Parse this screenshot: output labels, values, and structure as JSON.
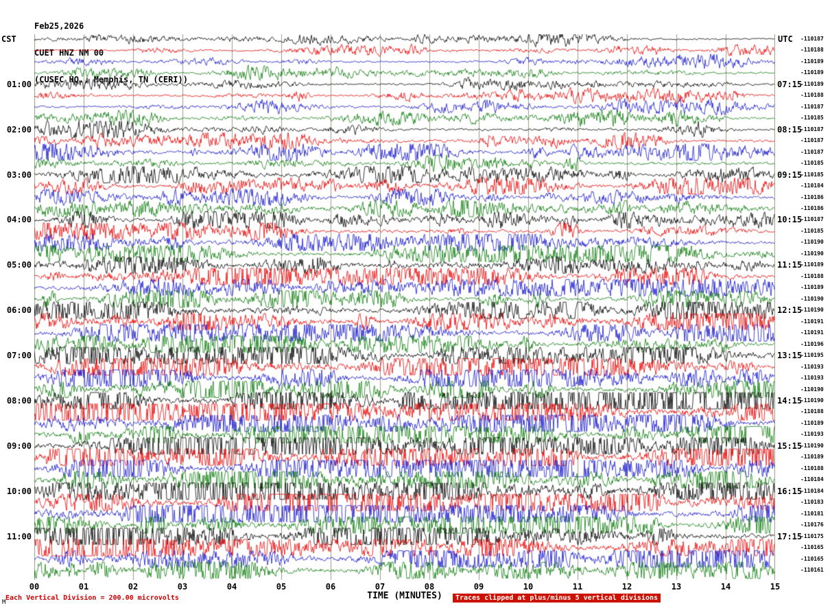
{
  "header": {
    "date": "Feb25,2026",
    "station": "CUET HNZ NM 00",
    "location": "(CUSEC HQ., Memphis, TN (CERI))",
    "left_tz": "CST",
    "right_tz": "UTC"
  },
  "corner_mark": "M",
  "chart_data": {
    "type": "line",
    "title": "CUET HNZ NM 00 helicorder seismogram, Feb25,2026, CUSEC HQ., Memphis, TN (CERI)",
    "xlabel": "TIME (MINUTES)",
    "x_range": [
      0,
      15
    ],
    "x_ticks": [
      "00",
      "01",
      "02",
      "03",
      "04",
      "05",
      "06",
      "07",
      "08",
      "09",
      "10",
      "11",
      "12",
      "13",
      "14",
      "15"
    ],
    "grid": true,
    "grid_color": "#999988",
    "footer_left": "Each Vertical Division =  200.00 microvolts",
    "footer_right": "Traces clipped at plus/minus 5 vertical divisions",
    "colors": {
      "black": "#000000",
      "red": "#e80000",
      "blue": "#1414cc",
      "green": "#0a7a0a"
    },
    "rows": [
      {
        "c": "black",
        "cst": "",
        "utc": "",
        "v": "-110187",
        "amp": 1.0
      },
      {
        "c": "red",
        "cst": "",
        "utc": "",
        "v": "-110188",
        "amp": 1.1
      },
      {
        "c": "blue",
        "cst": "",
        "utc": "",
        "v": "-110189",
        "amp": 1.1
      },
      {
        "c": "green",
        "cst": "",
        "utc": "",
        "v": "-110189",
        "amp": 1.2
      },
      {
        "c": "black",
        "cst": "01:00",
        "utc": "07:15",
        "v": "-110189",
        "amp": 1.2
      },
      {
        "c": "red",
        "cst": "",
        "utc": "",
        "v": "-110188",
        "amp": 1.2
      },
      {
        "c": "blue",
        "cst": "",
        "utc": "",
        "v": "-110187",
        "amp": 1.3
      },
      {
        "c": "green",
        "cst": "",
        "utc": "",
        "v": "-110185",
        "amp": 1.3
      },
      {
        "c": "black",
        "cst": "02:00",
        "utc": "08:15",
        "v": "-110187",
        "amp": 1.4
      },
      {
        "c": "red",
        "cst": "",
        "utc": "",
        "v": "-110187",
        "amp": 1.5
      },
      {
        "c": "blue",
        "cst": "",
        "utc": "",
        "v": "-110187",
        "amp": 1.6
      },
      {
        "c": "green",
        "cst": "",
        "utc": "",
        "v": "-110185",
        "amp": 1.6
      },
      {
        "c": "black",
        "cst": "03:00",
        "utc": "09:15",
        "v": "-110185",
        "amp": 1.6
      },
      {
        "c": "red",
        "cst": "",
        "utc": "",
        "v": "-110184",
        "amp": 1.6
      },
      {
        "c": "blue",
        "cst": "",
        "utc": "",
        "v": "-110186",
        "amp": 1.7
      },
      {
        "c": "green",
        "cst": "",
        "utc": "",
        "v": "-110186",
        "amp": 1.7
      },
      {
        "c": "black",
        "cst": "04:00",
        "utc": "10:15",
        "v": "-110187",
        "amp": 1.8
      },
      {
        "c": "red",
        "cst": "",
        "utc": "",
        "v": "-110185",
        "amp": 1.8
      },
      {
        "c": "blue",
        "cst": "",
        "utc": "",
        "v": "-110190",
        "amp": 1.9
      },
      {
        "c": "green",
        "cst": "",
        "utc": "",
        "v": "-110190",
        "amp": 1.9
      },
      {
        "c": "black",
        "cst": "05:00",
        "utc": "11:15",
        "v": "-110189",
        "amp": 2.0
      },
      {
        "c": "red",
        "cst": "",
        "utc": "",
        "v": "-110188",
        "amp": 2.0
      },
      {
        "c": "blue",
        "cst": "",
        "utc": "",
        "v": "-110189",
        "amp": 2.0
      },
      {
        "c": "green",
        "cst": "",
        "utc": "",
        "v": "-110190",
        "amp": 2.0
      },
      {
        "c": "black",
        "cst": "06:00",
        "utc": "12:15",
        "v": "-110190",
        "amp": 2.1
      },
      {
        "c": "red",
        "cst": "",
        "utc": "",
        "v": "-110191",
        "amp": 2.1
      },
      {
        "c": "blue",
        "cst": "",
        "utc": "",
        "v": "-110191",
        "amp": 2.2
      },
      {
        "c": "green",
        "cst": "",
        "utc": "",
        "v": "-110196",
        "amp": 2.3
      },
      {
        "c": "black",
        "cst": "07:00",
        "utc": "13:15",
        "v": "-110195",
        "amp": 2.6
      },
      {
        "c": "red",
        "cst": "",
        "utc": "",
        "v": "-110193",
        "amp": 2.5
      },
      {
        "c": "blue",
        "cst": "",
        "utc": "",
        "v": "-110193",
        "amp": 2.5
      },
      {
        "c": "green",
        "cst": "",
        "utc": "",
        "v": "-110190",
        "amp": 2.5
      },
      {
        "c": "black",
        "cst": "08:00",
        "utc": "14:15",
        "v": "-110190",
        "amp": 3.0
      },
      {
        "c": "red",
        "cst": "",
        "utc": "",
        "v": "-110188",
        "amp": 2.9
      },
      {
        "c": "blue",
        "cst": "",
        "utc": "",
        "v": "-110189",
        "amp": 2.8
      },
      {
        "c": "green",
        "cst": "",
        "utc": "",
        "v": "-110193",
        "amp": 2.8
      },
      {
        "c": "black",
        "cst": "09:00",
        "utc": "15:15",
        "v": "-110190",
        "amp": 3.1
      },
      {
        "c": "red",
        "cst": "",
        "utc": "",
        "v": "-110189",
        "amp": 3.0
      },
      {
        "c": "blue",
        "cst": "",
        "utc": "",
        "v": "-110188",
        "amp": 2.9
      },
      {
        "c": "green",
        "cst": "",
        "utc": "",
        "v": "-110184",
        "amp": 2.9
      },
      {
        "c": "black",
        "cst": "10:00",
        "utc": "16:15",
        "v": "-110184",
        "amp": 3.0
      },
      {
        "c": "red",
        "cst": "",
        "utc": "",
        "v": "-110183",
        "amp": 2.9
      },
      {
        "c": "blue",
        "cst": "",
        "utc": "",
        "v": "-110181",
        "amp": 2.8
      },
      {
        "c": "green",
        "cst": "",
        "utc": "",
        "v": "-110176",
        "amp": 2.8
      },
      {
        "c": "black",
        "cst": "11:00",
        "utc": "17:15",
        "v": "-110175",
        "amp": 2.6
      },
      {
        "c": "red",
        "cst": "",
        "utc": "",
        "v": "-110165",
        "amp": 2.5
      },
      {
        "c": "blue",
        "cst": "",
        "utc": "",
        "v": "-110165",
        "amp": 2.4
      },
      {
        "c": "green",
        "cst": "",
        "utc": "",
        "v": "-110161",
        "amp": 2.4
      }
    ]
  }
}
